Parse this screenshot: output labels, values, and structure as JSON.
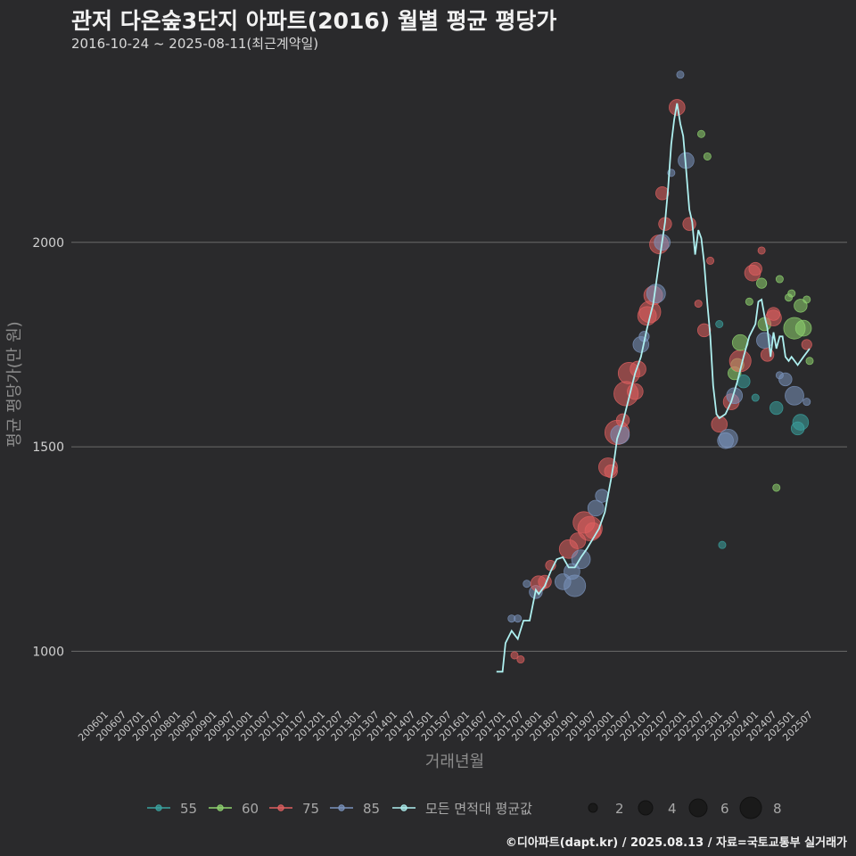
{
  "title": "관저 다온숲3단지 아파트(2016) 월별 평균 평당가",
  "subtitle": "2016-10-24 ~ 2025-08-11(최근계약일)",
  "caption": "©디아파트(dapt.kr) / 2025.08.13 / 자료=국토교통부 실거래가",
  "colors": {
    "background": "#2a2a2c",
    "grid": "#6a6a6a",
    "s55": "#3aa3a0",
    "s60": "#8fd36f",
    "s75": "#e06060",
    "s85": "#7a93bd",
    "avg": "#aef0f0"
  },
  "chart_data": {
    "type": "scatter",
    "title": "관저 다온숲3단지 아파트(2016) 월별 평균 평당가",
    "xlabel": "거래년월",
    "ylabel": "평균 평당가(만 원)",
    "ylim": [
      870,
      2440
    ],
    "yticks": [
      1000,
      1500,
      2000
    ],
    "xticks": [
      "200601",
      "200607",
      "200701",
      "200707",
      "200801",
      "200807",
      "200901",
      "200907",
      "201001",
      "201007",
      "201101",
      "201107",
      "201201",
      "201207",
      "201301",
      "201307",
      "201401",
      "201407",
      "201501",
      "201507",
      "201601",
      "201607",
      "201701",
      "201707",
      "201801",
      "201807",
      "201901",
      "201907",
      "202001",
      "202007",
      "202101",
      "202107",
      "202201",
      "202207",
      "202301",
      "202307",
      "202401",
      "202407",
      "202501",
      "202507"
    ],
    "legend": {
      "series_labels": [
        "55",
        "60",
        "75",
        "85",
        "모든 면적대 평균값"
      ],
      "size_labels": [
        "2",
        "4",
        "6",
        "8"
      ]
    },
    "avg_line": [
      [
        2016.83,
        950
      ],
      [
        2017.0,
        950
      ],
      [
        2017.08,
        1020
      ],
      [
        2017.25,
        1050
      ],
      [
        2017.42,
        1030
      ],
      [
        2017.58,
        1075
      ],
      [
        2017.75,
        1075
      ],
      [
        2017.92,
        1150
      ],
      [
        2018.0,
        1140
      ],
      [
        2018.17,
        1160
      ],
      [
        2018.33,
        1195
      ],
      [
        2018.5,
        1225
      ],
      [
        2018.67,
        1230
      ],
      [
        2018.83,
        1205
      ],
      [
        2019.0,
        1205
      ],
      [
        2019.17,
        1230
      ],
      [
        2019.33,
        1250
      ],
      [
        2019.5,
        1275
      ],
      [
        2019.67,
        1300
      ],
      [
        2019.83,
        1340
      ],
      [
        2020.0,
        1420
      ],
      [
        2020.08,
        1460
      ],
      [
        2020.17,
        1520
      ],
      [
        2020.33,
        1560
      ],
      [
        2020.5,
        1620
      ],
      [
        2020.67,
        1680
      ],
      [
        2020.83,
        1720
      ],
      [
        2021.0,
        1790
      ],
      [
        2021.17,
        1850
      ],
      [
        2021.33,
        1950
      ],
      [
        2021.5,
        2050
      ],
      [
        2021.58,
        2130
      ],
      [
        2021.67,
        2240
      ],
      [
        2021.75,
        2300
      ],
      [
        2021.83,
        2340
      ],
      [
        2021.92,
        2290
      ],
      [
        2022.0,
        2260
      ],
      [
        2022.08,
        2180
      ],
      [
        2022.17,
        2080
      ],
      [
        2022.25,
        2050
      ],
      [
        2022.33,
        1970
      ],
      [
        2022.42,
        2030
      ],
      [
        2022.5,
        2010
      ],
      [
        2022.58,
        1950
      ],
      [
        2022.67,
        1850
      ],
      [
        2022.75,
        1770
      ],
      [
        2022.83,
        1650
      ],
      [
        2022.92,
        1580
      ],
      [
        2023.0,
        1570
      ],
      [
        2023.17,
        1580
      ],
      [
        2023.33,
        1610
      ],
      [
        2023.5,
        1660
      ],
      [
        2023.67,
        1720
      ],
      [
        2023.83,
        1770
      ],
      [
        2024.0,
        1800
      ],
      [
        2024.08,
        1855
      ],
      [
        2024.17,
        1860
      ],
      [
        2024.25,
        1820
      ],
      [
        2024.33,
        1790
      ],
      [
        2024.42,
        1720
      ],
      [
        2024.5,
        1780
      ],
      [
        2024.58,
        1740
      ],
      [
        2024.67,
        1770
      ],
      [
        2024.75,
        1770
      ],
      [
        2024.83,
        1720
      ],
      [
        2024.92,
        1710
      ],
      [
        2025.0,
        1720
      ],
      [
        2025.17,
        1700
      ],
      [
        2025.33,
        1720
      ],
      [
        2025.5,
        1740
      ]
    ],
    "points": [
      {
        "x": 2017.25,
        "y": 1080,
        "s": "s85",
        "n": 1
      },
      {
        "x": 2017.42,
        "y": 1080,
        "s": "s85",
        "n": 1
      },
      {
        "x": 2017.33,
        "y": 990,
        "s": "s75",
        "n": 1
      },
      {
        "x": 2017.5,
        "y": 980,
        "s": "s75",
        "n": 1
      },
      {
        "x": 2017.67,
        "y": 1165,
        "s": "s85",
        "n": 1
      },
      {
        "x": 2017.92,
        "y": 1145,
        "s": "s85",
        "n": 3
      },
      {
        "x": 2018.0,
        "y": 1165,
        "s": "s75",
        "n": 4
      },
      {
        "x": 2018.17,
        "y": 1170,
        "s": "s75",
        "n": 3
      },
      {
        "x": 2018.33,
        "y": 1210,
        "s": "s75",
        "n": 2
      },
      {
        "x": 2018.67,
        "y": 1170,
        "s": "s85",
        "n": 4
      },
      {
        "x": 2018.83,
        "y": 1250,
        "s": "s75",
        "n": 5
      },
      {
        "x": 2018.92,
        "y": 1195,
        "s": "s85",
        "n": 4
      },
      {
        "x": 2019.0,
        "y": 1160,
        "s": "s85",
        "n": 6
      },
      {
        "x": 2019.08,
        "y": 1270,
        "s": "s75",
        "n": 4
      },
      {
        "x": 2019.17,
        "y": 1225,
        "s": "s85",
        "n": 5
      },
      {
        "x": 2019.25,
        "y": 1315,
        "s": "s75",
        "n": 6
      },
      {
        "x": 2019.42,
        "y": 1300,
        "s": "s75",
        "n": 7
      },
      {
        "x": 2019.5,
        "y": 1295,
        "s": "s75",
        "n": 4
      },
      {
        "x": 2019.58,
        "y": 1350,
        "s": "s85",
        "n": 4
      },
      {
        "x": 2019.75,
        "y": 1380,
        "s": "s85",
        "n": 3
      },
      {
        "x": 2019.92,
        "y": 1450,
        "s": "s75",
        "n": 5
      },
      {
        "x": 2020.0,
        "y": 1440,
        "s": "s75",
        "n": 3
      },
      {
        "x": 2020.17,
        "y": 1535,
        "s": "s75",
        "n": 7
      },
      {
        "x": 2020.25,
        "y": 1530,
        "s": "s85",
        "n": 5
      },
      {
        "x": 2020.33,
        "y": 1565,
        "s": "s75",
        "n": 3
      },
      {
        "x": 2020.42,
        "y": 1630,
        "s": "s75",
        "n": 7
      },
      {
        "x": 2020.5,
        "y": 1680,
        "s": "s75",
        "n": 6
      },
      {
        "x": 2020.67,
        "y": 1635,
        "s": "s75",
        "n": 4
      },
      {
        "x": 2020.75,
        "y": 1690,
        "s": "s75",
        "n": 4
      },
      {
        "x": 2020.83,
        "y": 1750,
        "s": "s85",
        "n": 4
      },
      {
        "x": 2020.92,
        "y": 1770,
        "s": "s85",
        "n": 2
      },
      {
        "x": 2021.0,
        "y": 1820,
        "s": "s75",
        "n": 5
      },
      {
        "x": 2021.08,
        "y": 1830,
        "s": "s75",
        "n": 6
      },
      {
        "x": 2021.17,
        "y": 1870,
        "s": "s75",
        "n": 5
      },
      {
        "x": 2021.25,
        "y": 1875,
        "s": "s85",
        "n": 5
      },
      {
        "x": 2021.33,
        "y": 1995,
        "s": "s75",
        "n": 5
      },
      {
        "x": 2021.42,
        "y": 2000,
        "s": "s85",
        "n": 4
      },
      {
        "x": 2021.5,
        "y": 2045,
        "s": "s75",
        "n": 3
      },
      {
        "x": 2021.42,
        "y": 2120,
        "s": "s75",
        "n": 3
      },
      {
        "x": 2021.67,
        "y": 2170,
        "s": "s85",
        "n": 1
      },
      {
        "x": 2021.83,
        "y": 2330,
        "s": "s75",
        "n": 4
      },
      {
        "x": 2021.92,
        "y": 2410,
        "s": "s85",
        "n": 1
      },
      {
        "x": 2022.08,
        "y": 2200,
        "s": "s85",
        "n": 4
      },
      {
        "x": 2022.17,
        "y": 2045,
        "s": "s75",
        "n": 3
      },
      {
        "x": 2022.5,
        "y": 2265,
        "s": "s60",
        "n": 1
      },
      {
        "x": 2022.67,
        "y": 2210,
        "s": "s60",
        "n": 1
      },
      {
        "x": 2022.42,
        "y": 1850,
        "s": "s75",
        "n": 1
      },
      {
        "x": 2022.58,
        "y": 1785,
        "s": "s75",
        "n": 3
      },
      {
        "x": 2022.75,
        "y": 1955,
        "s": "s75",
        "n": 1
      },
      {
        "x": 2023.0,
        "y": 1800,
        "s": "s55",
        "n": 1
      },
      {
        "x": 2023.0,
        "y": 1555,
        "s": "s75",
        "n": 4
      },
      {
        "x": 2023.08,
        "y": 1260,
        "s": "s55",
        "n": 1
      },
      {
        "x": 2023.17,
        "y": 1515,
        "s": "s85",
        "n": 4
      },
      {
        "x": 2023.25,
        "y": 1520,
        "s": "s85",
        "n": 5
      },
      {
        "x": 2023.33,
        "y": 1610,
        "s": "s75",
        "n": 4
      },
      {
        "x": 2023.42,
        "y": 1625,
        "s": "s85",
        "n": 4
      },
      {
        "x": 2023.42,
        "y": 1680,
        "s": "s60",
        "n": 3
      },
      {
        "x": 2023.5,
        "y": 1700,
        "s": "s60",
        "n": 3
      },
      {
        "x": 2023.58,
        "y": 1710,
        "s": "s75",
        "n": 6
      },
      {
        "x": 2023.58,
        "y": 1755,
        "s": "s60",
        "n": 4
      },
      {
        "x": 2023.67,
        "y": 1660,
        "s": "s55",
        "n": 3
      },
      {
        "x": 2023.83,
        "y": 1855,
        "s": "s60",
        "n": 1
      },
      {
        "x": 2023.92,
        "y": 1925,
        "s": "s75",
        "n": 4
      },
      {
        "x": 2024.0,
        "y": 1935,
        "s": "s75",
        "n": 3
      },
      {
        "x": 2024.0,
        "y": 1620,
        "s": "s55",
        "n": 1
      },
      {
        "x": 2024.17,
        "y": 1900,
        "s": "s60",
        "n": 2
      },
      {
        "x": 2024.17,
        "y": 1980,
        "s": "s75",
        "n": 1
      },
      {
        "x": 2024.25,
        "y": 1800,
        "s": "s60",
        "n": 3
      },
      {
        "x": 2024.25,
        "y": 1760,
        "s": "s85",
        "n": 4
      },
      {
        "x": 2024.33,
        "y": 1725,
        "s": "s75",
        "n": 3
      },
      {
        "x": 2024.5,
        "y": 1815,
        "s": "s75",
        "n": 4
      },
      {
        "x": 2024.5,
        "y": 1825,
        "s": "s75",
        "n": 3
      },
      {
        "x": 2024.58,
        "y": 1595,
        "s": "s55",
        "n": 3
      },
      {
        "x": 2024.67,
        "y": 1910,
        "s": "s60",
        "n": 1
      },
      {
        "x": 2024.67,
        "y": 1675,
        "s": "s85",
        "n": 1
      },
      {
        "x": 2024.83,
        "y": 1665,
        "s": "s85",
        "n": 3
      },
      {
        "x": 2024.92,
        "y": 1865,
        "s": "s60",
        "n": 1
      },
      {
        "x": 2025.0,
        "y": 1875,
        "s": "s60",
        "n": 1
      },
      {
        "x": 2025.08,
        "y": 1790,
        "s": "s60",
        "n": 6
      },
      {
        "x": 2025.08,
        "y": 1625,
        "s": "s85",
        "n": 5
      },
      {
        "x": 2025.17,
        "y": 1545,
        "s": "s55",
        "n": 3
      },
      {
        "x": 2025.25,
        "y": 1560,
        "s": "s55",
        "n": 4
      },
      {
        "x": 2025.25,
        "y": 1845,
        "s": "s60",
        "n": 3
      },
      {
        "x": 2025.33,
        "y": 1790,
        "s": "s60",
        "n": 4
      },
      {
        "x": 2025.42,
        "y": 1750,
        "s": "s75",
        "n": 2
      },
      {
        "x": 2025.42,
        "y": 1860,
        "s": "s60",
        "n": 1
      },
      {
        "x": 2025.5,
        "y": 1710,
        "s": "s60",
        "n": 1
      },
      {
        "x": 2025.42,
        "y": 1610,
        "s": "s85",
        "n": 1
      },
      {
        "x": 2024.58,
        "y": 1400,
        "s": "s60",
        "n": 1
      }
    ]
  }
}
